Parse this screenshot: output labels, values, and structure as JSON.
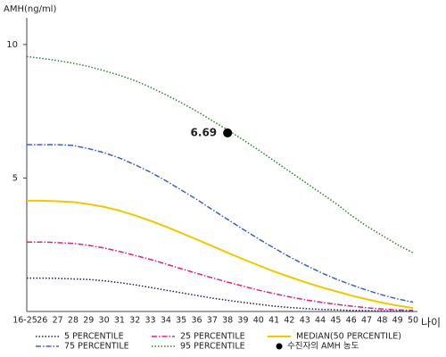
{
  "chart_data": {
    "type": "line",
    "y_label": "AMH(ng/ml)",
    "x_label": "나이",
    "categories": [
      "16-25",
      "26",
      "27",
      "28",
      "29",
      "30",
      "31",
      "32",
      "33",
      "34",
      "35",
      "36",
      "37",
      "38",
      "39",
      "40",
      "41",
      "42",
      "43",
      "44",
      "45",
      "46",
      "47",
      "48",
      "49",
      "50"
    ],
    "ylim": [
      0,
      11
    ],
    "yticks": [
      5,
      10
    ],
    "grid": false,
    "series": [
      {
        "name": "5 PERCENTILE",
        "color": "#1a1a6e",
        "dash": "dotted",
        "values": [
          1.25,
          1.25,
          1.24,
          1.22,
          1.2,
          1.15,
          1.08,
          1.0,
          0.9,
          0.8,
          0.7,
          0.6,
          0.5,
          0.42,
          0.34,
          0.27,
          0.2,
          0.15,
          0.11,
          0.08,
          0.06,
          0.04,
          0.03,
          0.02,
          0.01,
          0.01
        ]
      },
      {
        "name": "25 PERCENTILE",
        "color": "#e0208a",
        "dash": "dashdot",
        "values": [
          2.6,
          2.6,
          2.58,
          2.55,
          2.48,
          2.38,
          2.25,
          2.1,
          1.95,
          1.78,
          1.6,
          1.43,
          1.26,
          1.1,
          0.95,
          0.8,
          0.67,
          0.55,
          0.44,
          0.35,
          0.27,
          0.2,
          0.14,
          0.09,
          0.06,
          0.04
        ]
      },
      {
        "name": "MEDIAN(50 PERCENTILE)",
        "color": "#f0c800",
        "dash": "solid",
        "values": [
          4.15,
          4.15,
          4.13,
          4.1,
          4.02,
          3.92,
          3.78,
          3.6,
          3.4,
          3.18,
          2.94,
          2.7,
          2.45,
          2.2,
          1.96,
          1.73,
          1.5,
          1.3,
          1.1,
          0.92,
          0.76,
          0.6,
          0.46,
          0.33,
          0.22,
          0.13
        ]
      },
      {
        "name": "75 PERCENTILE",
        "color": "#3a5fcd",
        "dash": "dashdot",
        "values": [
          6.25,
          6.25,
          6.25,
          6.22,
          6.1,
          5.95,
          5.75,
          5.5,
          5.22,
          4.9,
          4.55,
          4.2,
          3.82,
          3.45,
          3.08,
          2.72,
          2.38,
          2.05,
          1.75,
          1.47,
          1.22,
          1.0,
          0.8,
          0.62,
          0.47,
          0.35
        ]
      },
      {
        "name": "95 PERCENTILE",
        "color": "#2e7d32",
        "dash": "dotted",
        "values": [
          9.55,
          9.48,
          9.4,
          9.3,
          9.18,
          9.02,
          8.85,
          8.65,
          8.4,
          8.12,
          7.82,
          7.5,
          7.15,
          6.8,
          6.43,
          6.05,
          5.65,
          5.25,
          4.85,
          4.45,
          4.05,
          3.6,
          3.2,
          2.85,
          2.5,
          2.2
        ]
      }
    ],
    "points": [
      {
        "name": "수진자의 AMH 농도",
        "color": "#000000",
        "category": "38",
        "value": 6.69
      }
    ]
  }
}
